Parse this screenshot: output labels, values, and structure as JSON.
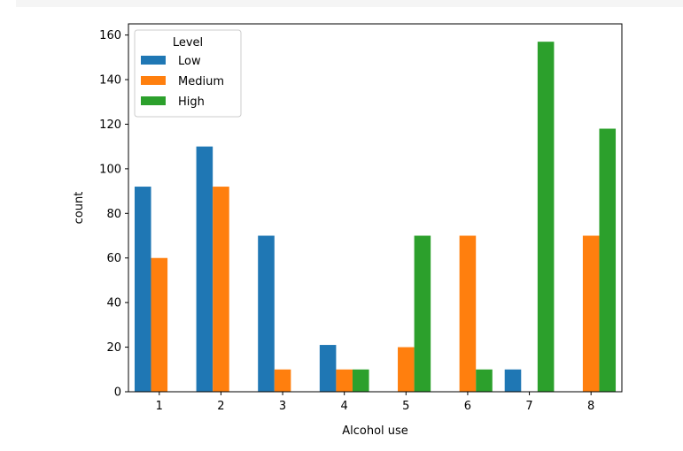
{
  "chart_data": {
    "type": "bar",
    "xlabel": "Alcohol use",
    "ylabel": "count",
    "categories": [
      "1",
      "2",
      "3",
      "4",
      "5",
      "6",
      "7",
      "8"
    ],
    "ylim": [
      0,
      165
    ],
    "yticks": [
      0,
      20,
      40,
      60,
      80,
      100,
      120,
      140,
      160
    ],
    "grid": false,
    "legend": {
      "title": "Level",
      "placement": "top-left"
    },
    "series": [
      {
        "name": "Low",
        "color": "#1f77b4",
        "values": [
          92,
          110,
          70,
          21,
          0,
          0,
          10,
          0
        ]
      },
      {
        "name": "Medium",
        "color": "#ff7f0e",
        "values": [
          60,
          92,
          10,
          10,
          20,
          70,
          0,
          70
        ]
      },
      {
        "name": "High",
        "color": "#2ca02c",
        "values": [
          0,
          0,
          0,
          10,
          70,
          10,
          157,
          118
        ]
      }
    ]
  }
}
